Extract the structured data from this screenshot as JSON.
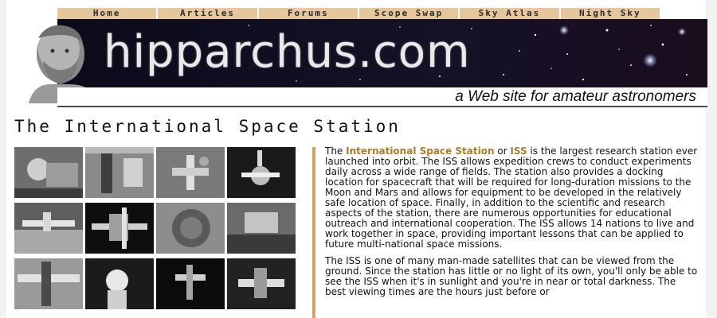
{
  "nav": {
    "items": [
      "Home",
      "Articles",
      "Forums",
      "Scope Swap",
      "Sky Atlas",
      "Night Sky"
    ]
  },
  "banner": {
    "logo_text": "hipparchus.com",
    "tagline": "a Web site for amateur astronomers"
  },
  "page": {
    "title": "The International Space Station"
  },
  "gallery": {
    "thumbnail_count": 12
  },
  "article": {
    "p1_part1": "The ",
    "p1_link1": "International Space Station",
    "p1_part2": " or ",
    "p1_link2": "ISS",
    "p1_part3": " is the largest research station ever launched into orbit. The ISS allows expedition crews to conduct experiments daily across a wide range of fields. The station also provides a docking location for spacecraft that will be required for long-duration missions to the Moon and Mars and allows for equipment to be developed in the relatively safe location of space. Finally, in addition to the scientific and research aspects of the station, there are numerous opportunities for educational outreach and international cooperation. The ISS allows 14 nations to live and work together in space, providing important lessons that can be applied to future multi-national space missions.",
    "p2": "The ISS is one of many man-made satellites that can be viewed from the ground. Since the station has little or no light of its own, you'll only be able to see the ISS when it's in sunlight and you're in near or total darkness. The best viewing times are the hours just before or"
  },
  "colors": {
    "nav_bg": "#e6c79c",
    "accent_link": "#b07a2a",
    "divider": "#d9a066",
    "banner_bg": "#05050b"
  }
}
